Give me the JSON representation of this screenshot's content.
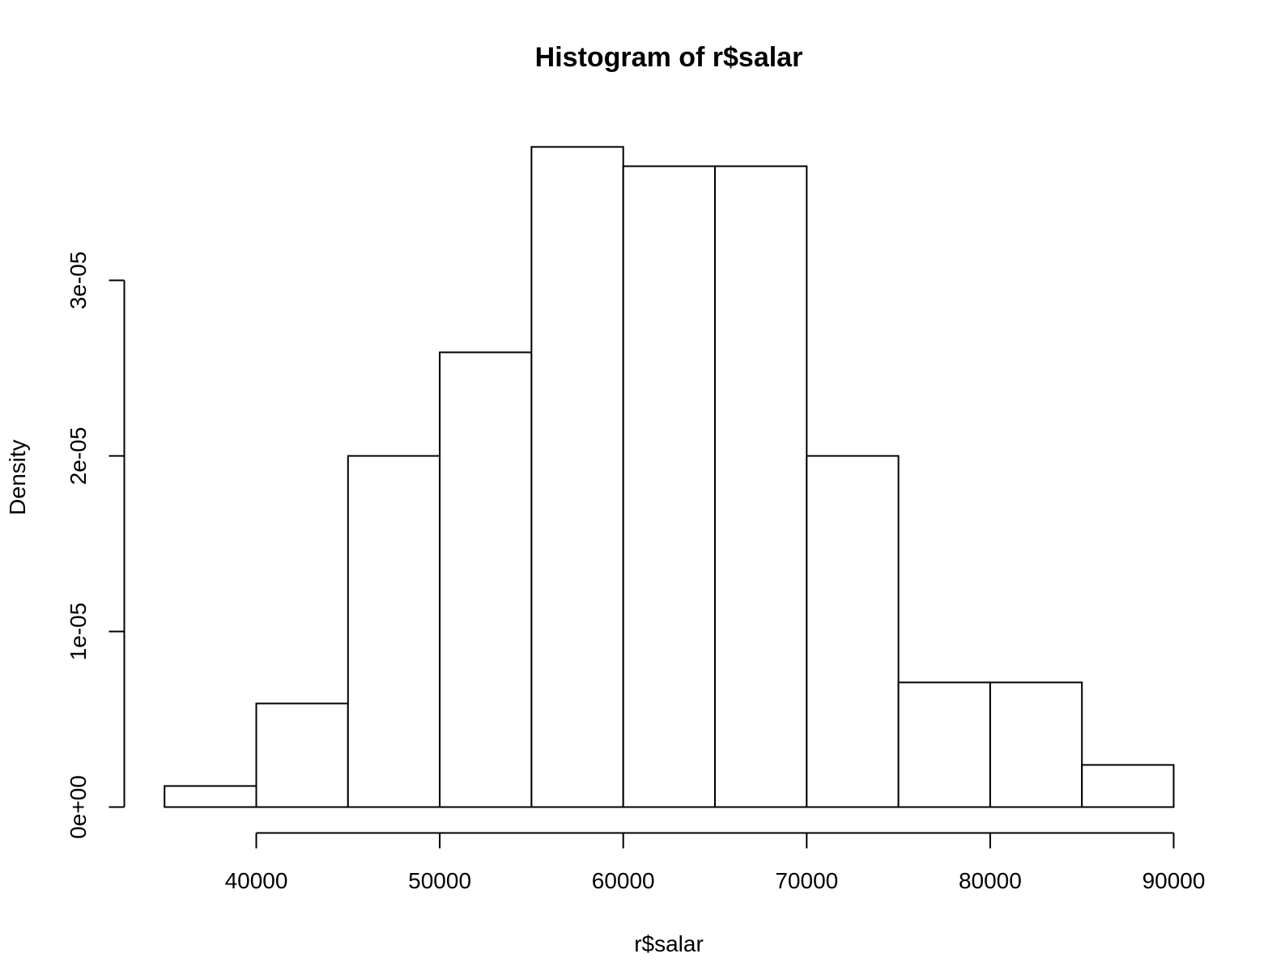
{
  "chart_data": {
    "type": "bar",
    "title": "Histogram of r$salar",
    "xlabel": "r$salar",
    "ylabel": "Density",
    "xlim": [
      35000,
      90000
    ],
    "ylim": [
      0,
      3.8e-05
    ],
    "x_ticks": [
      40000,
      50000,
      60000,
      70000,
      80000,
      90000
    ],
    "x_tick_labels": [
      "40000",
      "50000",
      "60000",
      "70000",
      "80000",
      "90000"
    ],
    "y_ticks": [
      0,
      1e-05,
      2e-05,
      3e-05
    ],
    "y_tick_labels": [
      "0e+00",
      "1e-05",
      "2e-05",
      "3e-05"
    ],
    "grid": false,
    "bins": [
      {
        "from": 35000,
        "to": 40000,
        "density": 1.2e-06
      },
      {
        "from": 40000,
        "to": 45000,
        "density": 5.9e-06
      },
      {
        "from": 45000,
        "to": 50000,
        "density": 2e-05
      },
      {
        "from": 50000,
        "to": 55000,
        "density": 2.59e-05
      },
      {
        "from": 55000,
        "to": 60000,
        "density": 3.76e-05
      },
      {
        "from": 60000,
        "to": 65000,
        "density": 3.65e-05
      },
      {
        "from": 65000,
        "to": 70000,
        "density": 3.65e-05
      },
      {
        "from": 70000,
        "to": 75000,
        "density": 2e-05
      },
      {
        "from": 75000,
        "to": 80000,
        "density": 7.1e-06
      },
      {
        "from": 80000,
        "to": 85000,
        "density": 7.1e-06
      },
      {
        "from": 85000,
        "to": 90000,
        "density": 2.4e-06
      }
    ]
  }
}
